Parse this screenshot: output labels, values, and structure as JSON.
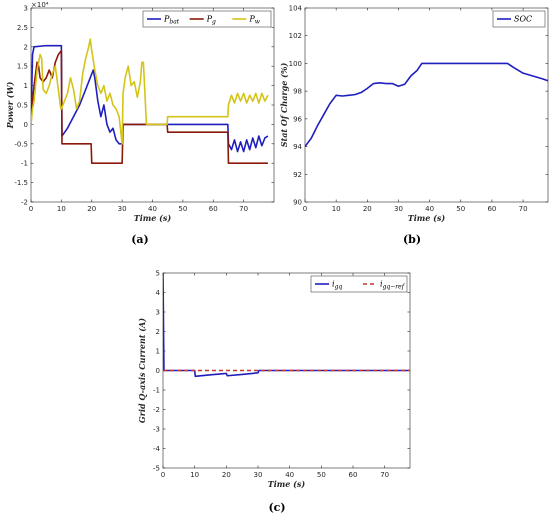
{
  "chart_data": [
    {
      "type": "line",
      "panel_label": "(a)",
      "xlabel": "Time (s)",
      "ylabel": "Power (W)",
      "y_exponent_label": "×10⁴",
      "xlim": [
        0,
        80
      ],
      "ylim": [
        -2,
        3
      ],
      "xticks": [
        0,
        10,
        20,
        30,
        40,
        50,
        60,
        70
      ],
      "yticks": [
        -2,
        -1.5,
        -1,
        -0.5,
        0,
        0.5,
        1,
        1.5,
        2,
        2.5,
        3
      ],
      "ytick_labels": [
        "-2",
        "-1.5",
        "-1",
        "-0.5",
        "0",
        "0.5",
        "1",
        "1.5",
        "2",
        "2.5",
        "3"
      ],
      "legend_position": "top-right",
      "series": [
        {
          "name": "Pbat",
          "color": "#1f1fbf",
          "points": [
            [
              0,
              0
            ],
            [
              0.5,
              1.8
            ],
            [
              1,
              2.0
            ],
            [
              5,
              2.03
            ],
            [
              10,
              2.03
            ],
            [
              10.2,
              -0.3
            ],
            [
              12,
              -0.1
            ],
            [
              14,
              0.2
            ],
            [
              16,
              0.5
            ],
            [
              18,
              0.9
            ],
            [
              19,
              1.1
            ],
            [
              20,
              1.3
            ],
            [
              20.5,
              1.4
            ],
            [
              21,
              1.2
            ],
            [
              22,
              0.6
            ],
            [
              23,
              0.2
            ],
            [
              24,
              0.5
            ],
            [
              25,
              0.0
            ],
            [
              26,
              -0.2
            ],
            [
              27,
              -0.1
            ],
            [
              28,
              -0.4
            ],
            [
              29,
              -0.5
            ],
            [
              30,
              -0.5
            ],
            [
              30.3,
              0
            ],
            [
              35,
              0
            ],
            [
              40,
              0
            ],
            [
              45,
              0
            ],
            [
              50,
              0
            ],
            [
              55,
              0
            ],
            [
              60,
              0
            ],
            [
              64.8,
              0
            ],
            [
              65,
              -0.5
            ],
            [
              66,
              -0.65
            ],
            [
              67,
              -0.4
            ],
            [
              68,
              -0.7
            ],
            [
              69,
              -0.45
            ],
            [
              70,
              -0.7
            ],
            [
              71,
              -0.4
            ],
            [
              72,
              -0.65
            ],
            [
              73,
              -0.35
            ],
            [
              74,
              -0.6
            ],
            [
              75,
              -0.3
            ],
            [
              76,
              -0.55
            ],
            [
              77,
              -0.35
            ],
            [
              78,
              -0.3
            ]
          ]
        },
        {
          "name": "Pg",
          "color": "#8b1a0a",
          "points": [
            [
              0,
              0
            ],
            [
              0.5,
              0.6
            ],
            [
              1,
              1.0
            ],
            [
              2,
              1.6
            ],
            [
              2.5,
              1.5
            ],
            [
              3,
              1.2
            ],
            [
              4,
              1.1
            ],
            [
              5,
              1.2
            ],
            [
              6,
              1.4
            ],
            [
              7,
              1.2
            ],
            [
              8,
              1.6
            ],
            [
              9,
              1.8
            ],
            [
              10,
              1.9
            ],
            [
              10.2,
              -0.5
            ],
            [
              15,
              -0.5
            ],
            [
              19.8,
              -0.5
            ],
            [
              20,
              -1.0
            ],
            [
              25,
              -1.0
            ],
            [
              30,
              -1.0
            ],
            [
              30.3,
              0
            ],
            [
              35,
              0
            ],
            [
              40,
              0
            ],
            [
              44.8,
              0
            ],
            [
              45,
              -0.2
            ],
            [
              50,
              -0.2
            ],
            [
              55,
              -0.2
            ],
            [
              60,
              -0.2
            ],
            [
              64.8,
              -0.2
            ],
            [
              65,
              -1.0
            ],
            [
              70,
              -1.0
            ],
            [
              78,
              -1.0
            ]
          ]
        },
        {
          "name": "Pw",
          "color": "#d4c417",
          "points": [
            [
              0,
              0
            ],
            [
              0.5,
              0.4
            ],
            [
              1,
              0.6
            ],
            [
              2,
              1.4
            ],
            [
              3,
              1.8
            ],
            [
              3.5,
              1.7
            ],
            [
              4,
              0.9
            ],
            [
              5,
              0.8
            ],
            [
              6,
              1.0
            ],
            [
              7,
              1.3
            ],
            [
              8,
              1.5
            ],
            [
              9,
              0.9
            ],
            [
              9.8,
              0.4
            ],
            [
              10,
              0.4
            ],
            [
              12,
              0.8
            ],
            [
              13,
              1.2
            ],
            [
              14,
              0.9
            ],
            [
              15,
              0.4
            ],
            [
              16,
              0.6
            ],
            [
              17,
              1.3
            ],
            [
              18,
              1.7
            ],
            [
              19,
              2.0
            ],
            [
              19.5,
              2.2
            ],
            [
              20,
              1.9
            ],
            [
              21,
              1.4
            ],
            [
              22,
              1.0
            ],
            [
              23,
              0.8
            ],
            [
              24,
              1.0
            ],
            [
              25,
              0.6
            ],
            [
              26,
              0.8
            ],
            [
              27,
              0.5
            ],
            [
              28,
              0.4
            ],
            [
              29,
              0.2
            ],
            [
              30,
              -0.5
            ],
            [
              30.3,
              0.8
            ],
            [
              31,
              1.2
            ],
            [
              32,
              1.5
            ],
            [
              33,
              1.0
            ],
            [
              34,
              1.1
            ],
            [
              35,
              0.7
            ],
            [
              36,
              1.1
            ],
            [
              36.5,
              1.6
            ],
            [
              37,
              1.6
            ],
            [
              37.5,
              0.8
            ],
            [
              38,
              0
            ],
            [
              40,
              0
            ],
            [
              44.8,
              0
            ],
            [
              45,
              0.2
            ],
            [
              50,
              0.2
            ],
            [
              55,
              0.2
            ],
            [
              60,
              0.2
            ],
            [
              64.8,
              0.2
            ],
            [
              65,
              0.5
            ],
            [
              66,
              0.75
            ],
            [
              67,
              0.55
            ],
            [
              68,
              0.8
            ],
            [
              69,
              0.6
            ],
            [
              70,
              0.8
            ],
            [
              71,
              0.55
            ],
            [
              72,
              0.75
            ],
            [
              73,
              0.6
            ],
            [
              74,
              0.8
            ],
            [
              75,
              0.55
            ],
            [
              76,
              0.8
            ],
            [
              77,
              0.6
            ],
            [
              78,
              0.75
            ]
          ]
        }
      ]
    },
    {
      "type": "line",
      "panel_label": "(b)",
      "xlabel": "Time (s)",
      "ylabel": "Stat Of Charge (%)",
      "xlim": [
        0,
        78
      ],
      "ylim": [
        90,
        104
      ],
      "xticks": [
        0,
        10,
        20,
        30,
        40,
        50,
        60,
        70
      ],
      "yticks": [
        90,
        92,
        94,
        96,
        98,
        100,
        102,
        104
      ],
      "ytick_labels": [
        "90",
        "92",
        "94",
        "96",
        "98",
        "100",
        "102",
        "104"
      ],
      "legend_position": "top-right",
      "series": [
        {
          "name": "SOC",
          "color": "#1f1fbf",
          "points": [
            [
              0,
              94
            ],
            [
              2,
              94.6
            ],
            [
              4,
              95.5
            ],
            [
              6,
              96.3
            ],
            [
              8,
              97.1
            ],
            [
              10,
              97.7
            ],
            [
              12,
              97.65
            ],
            [
              14,
              97.7
            ],
            [
              16,
              97.75
            ],
            [
              18,
              97.9
            ],
            [
              20,
              98.2
            ],
            [
              22,
              98.55
            ],
            [
              24,
              98.6
            ],
            [
              26,
              98.55
            ],
            [
              28,
              98.55
            ],
            [
              30,
              98.35
            ],
            [
              32,
              98.5
            ],
            [
              34,
              99.1
            ],
            [
              36,
              99.5
            ],
            [
              37.5,
              100
            ],
            [
              40,
              100
            ],
            [
              45,
              100
            ],
            [
              50,
              100
            ],
            [
              55,
              100
            ],
            [
              60,
              100
            ],
            [
              65,
              100
            ],
            [
              67,
              99.7
            ],
            [
              70,
              99.3
            ],
            [
              73,
              99.1
            ],
            [
              76,
              98.9
            ],
            [
              78,
              98.75
            ]
          ]
        }
      ]
    },
    {
      "type": "line",
      "panel_label": "(c)",
      "xlabel": "Time (s)",
      "ylabel": "Grid Q-axis Current (A)",
      "xlim": [
        0,
        78
      ],
      "ylim": [
        -5,
        5
      ],
      "xticks": [
        0,
        10,
        20,
        30,
        40,
        50,
        60,
        70
      ],
      "yticks": [
        -5,
        -4,
        -3,
        -2,
        -1,
        0,
        1,
        2,
        3,
        4,
        5
      ],
      "ytick_labels": [
        "-5",
        "-4",
        "-3",
        "-2",
        "-1",
        "0",
        "1",
        "2",
        "3",
        "4",
        "5"
      ],
      "legend_position": "top-right",
      "series": [
        {
          "name": "igq",
          "color": "#1f1fbf",
          "style": "solid",
          "points": [
            [
              0,
              5
            ],
            [
              0.3,
              0
            ],
            [
              10,
              0
            ],
            [
              10.2,
              -0.3
            ],
            [
              15,
              -0.22
            ],
            [
              20,
              -0.15
            ],
            [
              20.3,
              -0.27
            ],
            [
              25,
              -0.2
            ],
            [
              30,
              -0.12
            ],
            [
              30.3,
              0
            ],
            [
              40,
              0
            ],
            [
              50,
              0
            ],
            [
              60,
              0
            ],
            [
              70,
              0
            ],
            [
              78,
              0
            ]
          ]
        },
        {
          "name": "igq−ref",
          "color": "#c0392b",
          "style": "dashed",
          "points": [
            [
              0,
              0
            ],
            [
              78,
              0
            ]
          ]
        }
      ]
    }
  ]
}
